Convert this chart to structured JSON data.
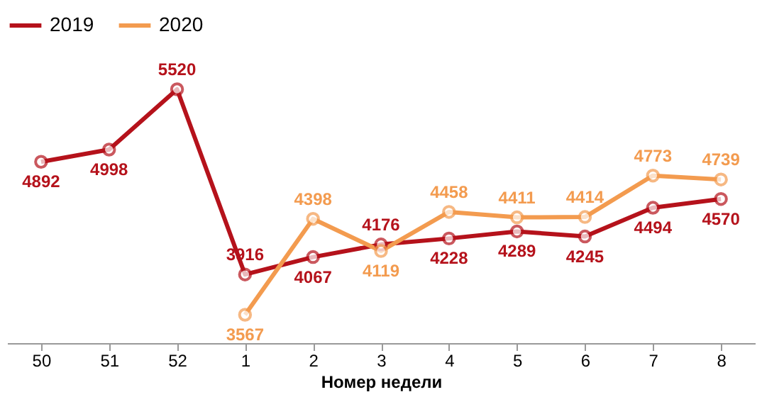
{
  "chart_data": {
    "type": "line",
    "xlabel": "Номер недели",
    "categories": [
      "50",
      "51",
      "52",
      "1",
      "2",
      "3",
      "4",
      "5",
      "6",
      "7",
      "8"
    ],
    "series": [
      {
        "name": "2019",
        "color": "#b5121b",
        "values": [
          4892,
          4998,
          5520,
          3916,
          4067,
          4176,
          4228,
          4289,
          4245,
          4494,
          4570
        ]
      },
      {
        "name": "2020",
        "color": "#f39b4f",
        "values": [
          null,
          null,
          null,
          3567,
          4398,
          4119,
          4458,
          4411,
          4414,
          4773,
          4739
        ]
      }
    ],
    "data_labels": true,
    "marker": "circle",
    "line_style": "solid",
    "legend": "top",
    "grid": false,
    "tick_labels": "x"
  }
}
